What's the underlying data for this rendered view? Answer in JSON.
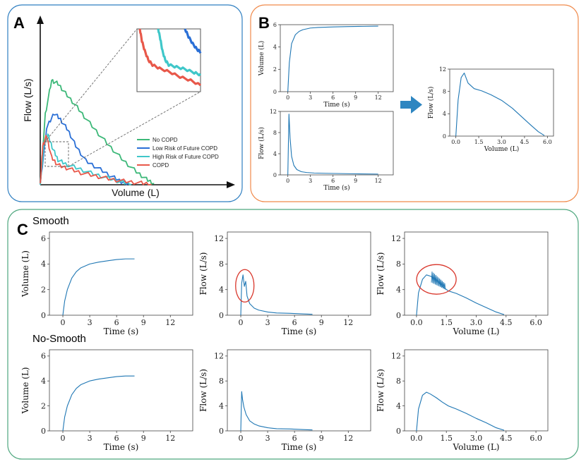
{
  "panels": {
    "A": "A",
    "B": "B",
    "C": "C"
  },
  "colors": {
    "panelA_border": "#2f7fc1",
    "panelB_border": "#f08a4b",
    "panelC_border": "#4ea77e",
    "line_blue": "#1f77b4",
    "no_copd": "#3cb878",
    "low_risk": "#2a6fd6",
    "high_risk": "#3fc7c9",
    "copd": "#e8584a",
    "annotation_red": "#d9372c",
    "arrow": "#2e86c1"
  },
  "sections": {
    "smooth": "Smooth",
    "no_smooth": "No-Smooth"
  },
  "chart_data": [
    {
      "id": "A-main",
      "type": "line",
      "title": "",
      "xlabel": "Volume (L)",
      "ylabel": "Flow (L/s)",
      "xlim": [
        0,
        6
      ],
      "ylim": [
        0,
        12
      ],
      "legend_position": "bottom-right",
      "series": [
        {
          "name": "No COPD",
          "color": "#3cb878",
          "x": [
            0,
            0.2,
            0.45,
            0.7,
            1.0,
            1.4,
            1.8,
            2.3,
            2.8,
            3.3,
            3.8,
            4.2,
            4.5
          ],
          "y": [
            0,
            6.5,
            9.6,
            9.3,
            8.4,
            7.3,
            6.1,
            4.7,
            3.4,
            2.2,
            1.2,
            0.5,
            0.1
          ]
        },
        {
          "name": "Low Risk of Future COPD",
          "color": "#2a6fd6",
          "x": [
            0,
            0.25,
            0.55,
            0.8,
            1.1,
            1.4,
            1.8,
            2.3,
            2.8,
            3.2,
            3.5
          ],
          "y": [
            0,
            5.2,
            6.6,
            6.0,
            5.0,
            3.6,
            2.2,
            1.5,
            0.8,
            0.3,
            0.05
          ]
        },
        {
          "name": "High Risk of Future COPD",
          "color": "#3fc7c9",
          "x": [
            0,
            0.15,
            0.3,
            0.5,
            0.7,
            1.0,
            1.5,
            2.1,
            2.7,
            3.2,
            3.6
          ],
          "y": [
            0,
            3.8,
            4.6,
            3.3,
            2.3,
            1.9,
            1.5,
            1.0,
            0.6,
            0.25,
            0.05
          ]
        },
        {
          "name": "COPD",
          "color": "#e8584a",
          "x": [
            0,
            0.1,
            0.25,
            0.45,
            0.7,
            1.1,
            1.6,
            2.2,
            2.8,
            3.4,
            4.0,
            4.4
          ],
          "y": [
            0,
            3.6,
            4.5,
            2.5,
            1.8,
            1.5,
            1.1,
            0.8,
            0.5,
            0.3,
            0.15,
            0.05
          ]
        }
      ],
      "annotations": [
        "zoomed inset of the tail region (dashed box)"
      ]
    },
    {
      "id": "B-volume-time",
      "type": "line",
      "xlabel": "Time (s)",
      "ylabel": "Volume (L)",
      "xlim": [
        -1,
        14
      ],
      "ylim": [
        0,
        6
      ],
      "xticks": [
        "0",
        "3",
        "6",
        "9",
        "12"
      ],
      "yticks": [
        "0",
        "2",
        "4",
        "6"
      ],
      "x": [
        0,
        0.2,
        0.5,
        1.0,
        1.5,
        2.0,
        3.0,
        4.0,
        6.0,
        8.0,
        10.0,
        12.0
      ],
      "y": [
        0,
        2.6,
        4.3,
        5.1,
        5.4,
        5.55,
        5.7,
        5.75,
        5.8,
        5.83,
        5.85,
        5.87
      ]
    },
    {
      "id": "B-flow-time",
      "type": "line",
      "xlabel": "Time (s)",
      "ylabel": "Flow (L/s)",
      "xlim": [
        -1,
        14
      ],
      "ylim": [
        0,
        12
      ],
      "xticks": [
        "0",
        "3",
        "6",
        "9",
        "12"
      ],
      "yticks": [
        "0",
        "4",
        "8",
        "12"
      ],
      "x": [
        0,
        0.15,
        0.3,
        0.5,
        0.8,
        1.2,
        1.8,
        2.5,
        3.5,
        5,
        7,
        9,
        12
      ],
      "y": [
        0,
        11.5,
        7.0,
        3.5,
        1.8,
        1.0,
        0.6,
        0.45,
        0.35,
        0.3,
        0.25,
        0.2,
        0.15
      ]
    },
    {
      "id": "B-flow-volume",
      "type": "line",
      "xlabel": "Volume (L)",
      "ylabel": "Flow (L/s)",
      "xlim": [
        -0.4,
        6.4
      ],
      "ylim": [
        0,
        12
      ],
      "xticks": [
        "0.0",
        "1.5",
        "3.0",
        "4.5",
        "6.0"
      ],
      "yticks": [
        "0",
        "4",
        "8",
        "12"
      ],
      "x": [
        0,
        0.15,
        0.35,
        0.55,
        0.8,
        1.2,
        1.7,
        2.3,
        3.0,
        3.7,
        4.3,
        4.9,
        5.4,
        5.8
      ],
      "y": [
        0,
        6.5,
        10.5,
        11.3,
        9.5,
        8.5,
        8.1,
        7.4,
        6.4,
        5.0,
        3.5,
        2.0,
        0.8,
        0.1
      ]
    },
    {
      "id": "C-smooth-volume-time",
      "type": "line",
      "xlabel": "Time (s)",
      "ylabel": "Volume (L)",
      "xlim": [
        -1.5,
        14.5
      ],
      "ylim": [
        0,
        6.5
      ],
      "xticks": [
        "0",
        "3",
        "6",
        "9",
        "12"
      ],
      "yticks": [
        "0",
        "2",
        "4",
        "6"
      ],
      "x": [
        0,
        0.2,
        0.5,
        1.0,
        1.5,
        2.0,
        3.0,
        4.0,
        5.0,
        6.0,
        7.0,
        8.0
      ],
      "y": [
        0,
        1.1,
        2.0,
        2.9,
        3.4,
        3.7,
        4.0,
        4.15,
        4.25,
        4.35,
        4.4,
        4.4
      ]
    },
    {
      "id": "C-smooth-flow-time",
      "type": "line",
      "xlabel": "Time (s)",
      "ylabel": "Flow (L/s)",
      "xlim": [
        -1.5,
        14.5
      ],
      "ylim": [
        0,
        13
      ],
      "xticks": [
        "0",
        "3",
        "6",
        "9",
        "12"
      ],
      "yticks": [
        "0",
        "4",
        "8",
        "12"
      ],
      "x": [
        0,
        0.1,
        0.25,
        0.4,
        0.55,
        0.7,
        1.0,
        1.5,
        2.0,
        3.0,
        4.0,
        5.5,
        7.0,
        8.0
      ],
      "y": [
        0,
        5.0,
        6.3,
        4.5,
        5.3,
        3.0,
        1.8,
        1.1,
        0.8,
        0.5,
        0.35,
        0.3,
        0.2,
        0.15
      ],
      "annotations": [
        "red circle around oscillation near peak"
      ]
    },
    {
      "id": "C-smooth-flow-volume",
      "type": "line",
      "xlabel": "Volume (L)",
      "ylabel": "Flow (L/s)",
      "xlim": [
        -0.6,
        6.6
      ],
      "ylim": [
        0,
        13
      ],
      "xticks": [
        "0.0",
        "1.5",
        "3.0",
        "4.5",
        "6.0"
      ],
      "yticks": [
        "0",
        "4",
        "8",
        "12"
      ],
      "x": [
        0,
        0.1,
        0.3,
        0.5,
        0.7,
        0.9,
        1.1,
        1.3,
        1.6,
        2.0,
        2.5,
        3.0,
        3.5,
        4.0,
        4.4
      ],
      "y": [
        0,
        3.5,
        5.6,
        6.3,
        6.1,
        5.8,
        5.2,
        4.5,
        3.8,
        3.4,
        2.7,
        1.9,
        1.2,
        0.5,
        0.1
      ],
      "annotations": [
        "red circle around oscillation near peak"
      ]
    },
    {
      "id": "C-nosmooth-volume-time",
      "type": "line",
      "xlabel": "Time (s)",
      "ylabel": "Volume (L)",
      "xlim": [
        -1.5,
        14.5
      ],
      "ylim": [
        0,
        6.5
      ],
      "xticks": [
        "0",
        "3",
        "6",
        "9",
        "12"
      ],
      "yticks": [
        "0",
        "2",
        "4",
        "6"
      ],
      "x": [
        0,
        0.2,
        0.5,
        1.0,
        1.5,
        2.0,
        3.0,
        4.0,
        5.0,
        6.0,
        7.0,
        8.0
      ],
      "y": [
        0,
        1.1,
        2.0,
        2.9,
        3.4,
        3.7,
        4.0,
        4.15,
        4.25,
        4.35,
        4.4,
        4.4
      ]
    },
    {
      "id": "C-nosmooth-flow-time",
      "type": "line",
      "xlabel": "Time (s)",
      "ylabel": "Flow (L/s)",
      "xlim": [
        -1.5,
        14.5
      ],
      "ylim": [
        0,
        13
      ],
      "xticks": [
        "0",
        "3",
        "6",
        "9",
        "12"
      ],
      "yticks": [
        "0",
        "4",
        "8",
        "12"
      ],
      "x": [
        0,
        0.1,
        0.2,
        0.35,
        0.6,
        1.0,
        1.5,
        2.0,
        3.0,
        4.0,
        5.5,
        7.0,
        8.0
      ],
      "y": [
        0,
        6.3,
        5.0,
        3.8,
        2.6,
        1.6,
        1.1,
        0.8,
        0.5,
        0.35,
        0.3,
        0.2,
        0.15
      ]
    },
    {
      "id": "C-nosmooth-flow-volume",
      "type": "line",
      "xlabel": "Volume (L)",
      "ylabel": "Flow (L/s)",
      "xlim": [
        -0.6,
        6.6
      ],
      "ylim": [
        0,
        13
      ],
      "xticks": [
        "0.0",
        "1.5",
        "3.0",
        "4.5",
        "6.0"
      ],
      "yticks": [
        "0",
        "4",
        "8",
        "12"
      ],
      "x": [
        0,
        0.1,
        0.3,
        0.5,
        0.7,
        1.0,
        1.3,
        1.6,
        2.0,
        2.5,
        3.0,
        3.5,
        4.0,
        4.4
      ],
      "y": [
        0,
        3.5,
        5.7,
        6.2,
        5.9,
        5.3,
        4.6,
        4.0,
        3.5,
        2.8,
        2.0,
        1.3,
        0.5,
        0.1
      ]
    }
  ]
}
